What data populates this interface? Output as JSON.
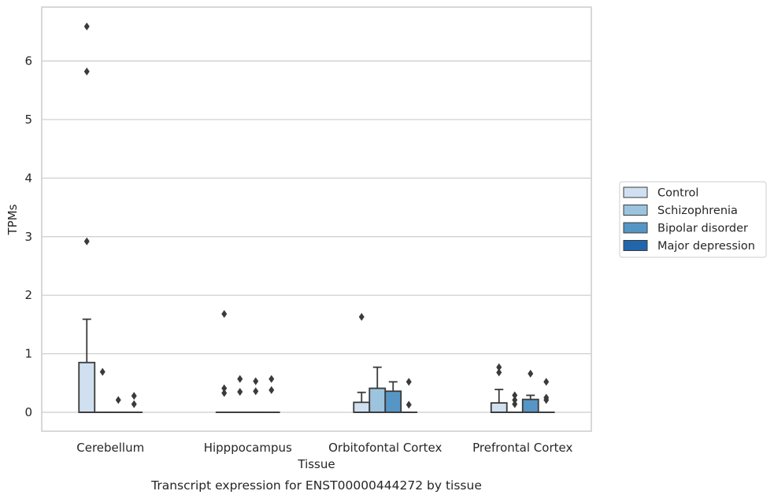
{
  "chart_data": {
    "type": "box",
    "title": "Transcript expression for ENST00000444272 by tissue",
    "xlabel": "Tissue",
    "ylabel": "TPMs",
    "ylim": [
      -0.32,
      6.9
    ],
    "yticks": [
      "0",
      "1",
      "2",
      "3",
      "4",
      "5",
      "6"
    ],
    "ytick_values": [
      0,
      1,
      2,
      3,
      4,
      5,
      6
    ],
    "grid": true,
    "legend_position": "right",
    "categories": [
      "Cerebellum",
      "Hipppocampus",
      "Orbitofontal Cortex",
      "Prefrontal Cortex"
    ],
    "series": [
      {
        "name": "Control",
        "color": "#d0e0f0",
        "boxes": [
          {
            "q1": 0,
            "median": 0,
            "q3": 0.85,
            "whisker_low": 0,
            "whisker_high": 1.59,
            "outliers": [
              2.92,
              5.82,
              6.59
            ]
          },
          {
            "q1": 0,
            "median": 0,
            "q3": 0,
            "whisker_low": 0,
            "whisker_high": 0,
            "outliers": [
              0.33,
              0.41,
              1.68
            ]
          },
          {
            "q1": 0,
            "median": 0,
            "q3": 0.17,
            "whisker_low": 0,
            "whisker_high": 0.34,
            "outliers": [
              1.63
            ]
          },
          {
            "q1": 0,
            "median": 0,
            "q3": 0.16,
            "whisker_low": 0,
            "whisker_high": 0.39,
            "outliers": [
              0.68,
              0.77
            ]
          }
        ]
      },
      {
        "name": "Schizophrenia",
        "color": "#9cc4de",
        "boxes": [
          {
            "q1": 0,
            "median": 0,
            "q3": 0,
            "whisker_low": 0,
            "whisker_high": 0,
            "outliers": [
              0.69
            ]
          },
          {
            "q1": 0,
            "median": 0,
            "q3": 0,
            "whisker_low": 0,
            "whisker_high": 0,
            "outliers": [
              0.35,
              0.57
            ]
          },
          {
            "q1": 0,
            "median": 0,
            "q3": 0.41,
            "whisker_low": 0,
            "whisker_high": 0.77,
            "outliers": []
          },
          {
            "q1": 0,
            "median": 0,
            "q3": 0,
            "whisker_low": 0,
            "whisker_high": 0,
            "outliers": [
              0.14,
              0.21,
              0.29
            ]
          }
        ]
      },
      {
        "name": "Bipolar disorder",
        "color": "#5696c6",
        "boxes": [
          {
            "q1": 0,
            "median": 0,
            "q3": 0,
            "whisker_low": 0,
            "whisker_high": 0,
            "outliers": [
              0.21
            ]
          },
          {
            "q1": 0,
            "median": 0,
            "q3": 0,
            "whisker_low": 0,
            "whisker_high": 0,
            "outliers": [
              0.36,
              0.53
            ]
          },
          {
            "q1": 0,
            "median": 0,
            "q3": 0.36,
            "whisker_low": 0,
            "whisker_high": 0.52,
            "outliers": []
          },
          {
            "q1": 0,
            "median": 0,
            "q3": 0.22,
            "whisker_low": 0,
            "whisker_high": 0.29,
            "outliers": [
              0.66
            ]
          }
        ]
      },
      {
        "name": "Major depression",
        "color": "#2166ac",
        "boxes": [
          {
            "q1": 0,
            "median": 0,
            "q3": 0,
            "whisker_low": 0,
            "whisker_high": 0,
            "outliers": [
              0.14,
              0.28
            ]
          },
          {
            "q1": 0,
            "median": 0,
            "q3": 0,
            "whisker_low": 0,
            "whisker_high": 0,
            "outliers": [
              0.38,
              0.57
            ]
          },
          {
            "q1": 0,
            "median": 0,
            "q3": 0,
            "whisker_low": 0,
            "whisker_high": 0,
            "outliers": [
              0.13,
              0.52
            ]
          },
          {
            "q1": 0,
            "median": 0,
            "q3": 0,
            "whisker_low": 0,
            "whisker_high": 0,
            "outliers": [
              0.21,
              0.25,
              0.52
            ]
          }
        ]
      }
    ]
  }
}
